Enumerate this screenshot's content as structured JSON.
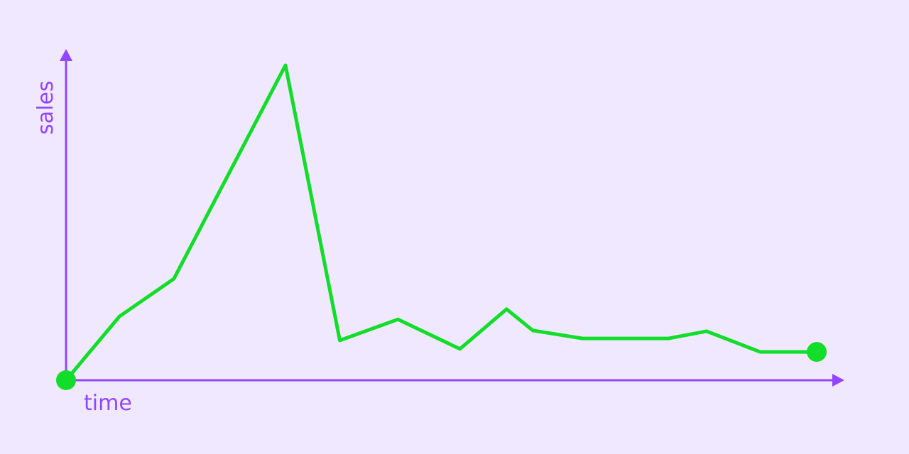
{
  "chart_data": {
    "type": "line",
    "title": "",
    "xlabel": "time",
    "ylabel": "sales",
    "xlim": [
      0,
      100
    ],
    "ylim": [
      0,
      100
    ],
    "grid": false,
    "ticks": false,
    "colors": {
      "background": "#f0e8ff",
      "axis": "#9146ff",
      "line": "#12dd2a"
    },
    "series": [
      {
        "x": [
          0,
          6.9,
          13.9,
          28.3,
          35.3,
          42.8,
          50.8,
          56.8,
          60.2,
          66.6,
          77.7,
          82.6,
          89.5,
          96.8
        ],
        "y": [
          0,
          19.4,
          30.8,
          95.7,
          12.1,
          18.5,
          9.5,
          21.6,
          15.1,
          12.7,
          12.7,
          14.9,
          8.6,
          8.6
        ],
        "endpoint_markers": true
      }
    ]
  }
}
